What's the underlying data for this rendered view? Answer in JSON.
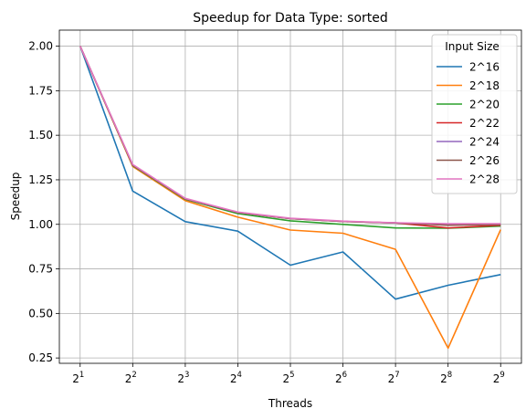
{
  "chart_data": {
    "type": "line",
    "title": "Speedup for Data Type: sorted",
    "xlabel": "Threads",
    "ylabel": "Speedup",
    "x_tick_base": "2",
    "x_exponents": [
      "1",
      "2",
      "3",
      "4",
      "5",
      "6",
      "7",
      "8",
      "9"
    ],
    "x": [
      2,
      4,
      8,
      16,
      32,
      64,
      128,
      256,
      512
    ],
    "x_scale": "log2",
    "ylim": [
      0.22,
      2.09
    ],
    "yticks": [
      "0.25",
      "0.50",
      "0.75",
      "1.00",
      "1.25",
      "1.50",
      "1.75",
      "2.00"
    ],
    "grid": true,
    "legend": {
      "title": "Input Size",
      "placement": "top-right"
    },
    "series": [
      {
        "name": "2^16",
        "color": "#1f77b4",
        "values": [
          2.0,
          1.187,
          1.015,
          0.962,
          0.771,
          0.845,
          0.58,
          0.658,
          0.718
        ]
      },
      {
        "name": "2^18",
        "color": "#ff7f0e",
        "values": [
          2.0,
          1.325,
          1.133,
          1.04,
          0.968,
          0.95,
          0.86,
          0.305,
          0.97
        ]
      },
      {
        "name": "2^20",
        "color": "#2ca02c",
        "values": [
          2.0,
          1.33,
          1.14,
          1.06,
          1.02,
          1.0,
          0.98,
          0.978,
          0.99
        ]
      },
      {
        "name": "2^22",
        "color": "#d62728",
        "values": [
          2.0,
          1.333,
          1.143,
          1.067,
          1.032,
          1.016,
          1.008,
          0.98,
          0.995
        ]
      },
      {
        "name": "2^24",
        "color": "#9467bd",
        "values": [
          2.0,
          1.333,
          1.143,
          1.067,
          1.032,
          1.016,
          1.008,
          1.0,
          1.0
        ]
      },
      {
        "name": "2^26",
        "color": "#8c564b",
        "values": [
          2.0,
          1.333,
          1.143,
          1.067,
          1.032,
          1.016,
          1.008,
          0.995,
          1.0
        ]
      },
      {
        "name": "2^28",
        "color": "#e377c2",
        "values": [
          2.0,
          1.336,
          1.146,
          1.069,
          1.034,
          1.018,
          1.009,
          1.004,
          1.004
        ]
      }
    ]
  }
}
